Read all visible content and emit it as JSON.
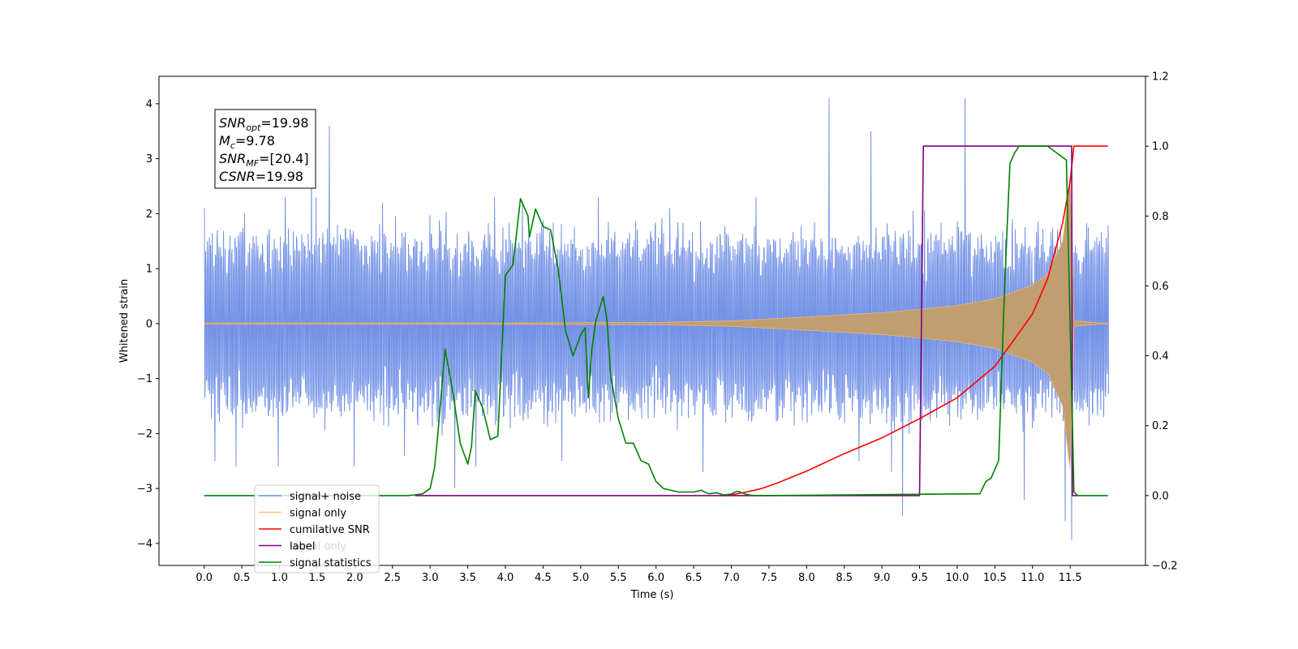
{
  "chart_data": {
    "type": "line",
    "xlabel": "Time (s)",
    "ylabel": "Whitened strain",
    "xlim": [
      -0.6,
      12.5
    ],
    "ylim": [
      -4.4,
      4.5
    ],
    "ylim_right": [
      -0.2,
      1.2
    ],
    "x_ticks": [
      "0.0",
      "0.5",
      "1.0",
      "1.5",
      "2.0",
      "2.5",
      "3.0",
      "3.5",
      "4.0",
      "4.5",
      "5.0",
      "5.5",
      "6.0",
      "6.5",
      "7.0",
      "7.5",
      "8.0",
      "8.5",
      "9.0",
      "9.5",
      "10.0",
      "10.5",
      "11.0",
      "11.5"
    ],
    "y_ticks_left": [
      "4",
      "3",
      "2",
      "1",
      "0",
      "−1",
      "−2",
      "−3",
      "−4"
    ],
    "y_ticks_right": [
      "1.2",
      "1.0",
      "0.8",
      "0.6",
      "0.4",
      "0.2",
      "0.0",
      "−0.2"
    ],
    "annotation": {
      "lines": [
        {
          "main": "SNR",
          "sub": "opt",
          "rest": "=19.98"
        },
        {
          "main": "M",
          "sub": "c",
          "rest": "=9.78"
        },
        {
          "main": "SNR",
          "sub": "MF",
          "rest": "=[20.4]"
        },
        {
          "main": "CSNR",
          "sub": "",
          "rest": "=19.98"
        }
      ]
    },
    "legend": {
      "placement": "lower-left",
      "entries": [
        {
          "label": "signal+ noise",
          "color": "#7391e6"
        },
        {
          "label": "signal only",
          "color": "#ffbf6b"
        },
        {
          "label": "cumilative SNR",
          "color": "#ff0000"
        },
        {
          "label": "label",
          "color": "#800080"
        },
        {
          "label": "signal statistics",
          "color": "#008000"
        }
      ],
      "ghost_labels": [
        "signal only"
      ]
    },
    "series": [
      {
        "name": "signal+ noise",
        "axis": "left",
        "color": "#7391e6",
        "style": "noise",
        "x_range": [
          0.0,
          12.0
        ],
        "typical_band": [
          -1.6,
          1.6
        ],
        "spikes": [
          {
            "x": 0.0,
            "y": 2.1
          },
          {
            "x": 0.14,
            "y": -2.5
          },
          {
            "x": 0.42,
            "y": -2.6
          },
          {
            "x": 0.98,
            "y": -2.6
          },
          {
            "x": 1.07,
            "y": 2.3
          },
          {
            "x": 1.43,
            "y": 2.8
          },
          {
            "x": 1.48,
            "y": 2.3
          },
          {
            "x": 1.66,
            "y": 3.6
          },
          {
            "x": 1.99,
            "y": -2.6
          },
          {
            "x": 2.36,
            "y": 2.2
          },
          {
            "x": 2.65,
            "y": -2.4
          },
          {
            "x": 3.32,
            "y": -3.0
          },
          {
            "x": 3.6,
            "y": -2.6
          },
          {
            "x": 3.85,
            "y": 2.3
          },
          {
            "x": 4.23,
            "y": 2.2
          },
          {
            "x": 4.74,
            "y": -2.5
          },
          {
            "x": 5.23,
            "y": 2.3
          },
          {
            "x": 6.18,
            "y": 2.1
          },
          {
            "x": 6.62,
            "y": -2.7
          },
          {
            "x": 7.33,
            "y": 2.3
          },
          {
            "x": 8.3,
            "y": 4.1
          },
          {
            "x": 8.7,
            "y": -2.5
          },
          {
            "x": 8.85,
            "y": 3.5
          },
          {
            "x": 9.13,
            "y": -2.7
          },
          {
            "x": 9.27,
            "y": -3.5
          },
          {
            "x": 10.1,
            "y": 4.1
          },
          {
            "x": 10.88,
            "y": -3.2
          },
          {
            "x": 11.43,
            "y": -3.6
          },
          {
            "x": 11.52,
            "y": -3.95
          }
        ]
      },
      {
        "name": "signal only",
        "axis": "left",
        "color": "#ffbf6b",
        "fill_color": "#c19e70",
        "style": "chirp",
        "envelope": {
          "x": [
            0.0,
            6.0,
            7.0,
            8.0,
            9.0,
            9.5,
            10.0,
            10.5,
            11.0,
            11.2,
            11.4,
            11.5,
            11.55,
            12.0
          ],
          "amplitude": [
            0.0,
            0.02,
            0.05,
            0.12,
            0.2,
            0.26,
            0.33,
            0.45,
            0.7,
            0.9,
            1.5,
            2.7,
            0.05,
            0.0
          ]
        }
      },
      {
        "name": "cumilative SNR",
        "axis": "right",
        "color": "#ff0000",
        "x": [
          6.9,
          7.0,
          7.2,
          7.4,
          7.6,
          8.0,
          8.5,
          9.0,
          9.5,
          10.0,
          10.5,
          11.0,
          11.2,
          11.4,
          11.5,
          11.55,
          12.0
        ],
        "y": [
          0.0,
          0.002,
          0.01,
          0.02,
          0.035,
          0.07,
          0.12,
          0.165,
          0.22,
          0.28,
          0.37,
          0.52,
          0.62,
          0.78,
          0.9,
          1.0,
          1.0
        ]
      },
      {
        "name": "label",
        "axis": "right",
        "color": "#800080",
        "x": [
          2.8,
          9.5,
          9.55,
          11.52,
          11.53,
          11.6
        ],
        "y": [
          0.0,
          0.0,
          1.0,
          1.0,
          0.0,
          0.0
        ]
      },
      {
        "name": "signal statistics",
        "axis": "right",
        "color": "#008000",
        "x": [
          0.0,
          2.7,
          2.8,
          2.9,
          3.0,
          3.06,
          3.1,
          3.2,
          3.3,
          3.4,
          3.5,
          3.55,
          3.6,
          3.7,
          3.8,
          3.9,
          4.0,
          4.1,
          4.2,
          4.3,
          4.32,
          4.4,
          4.5,
          4.6,
          4.7,
          4.8,
          4.9,
          5.0,
          5.06,
          5.1,
          5.15,
          5.2,
          5.3,
          5.35,
          5.4,
          5.5,
          5.6,
          5.7,
          5.8,
          5.9,
          6.0,
          6.1,
          6.2,
          6.3,
          6.5,
          6.6,
          6.7,
          6.8,
          6.9,
          7.0,
          7.05,
          7.1,
          7.2,
          7.3,
          7.4,
          10.3,
          10.38,
          10.45,
          10.55,
          10.63,
          10.7,
          10.76,
          10.82,
          11.0,
          11.2,
          11.45,
          11.55,
          11.6,
          12.0
        ],
        "y": [
          0.0,
          0.0,
          0.002,
          0.005,
          0.02,
          0.08,
          0.17,
          0.42,
          0.3,
          0.15,
          0.09,
          0.14,
          0.3,
          0.25,
          0.16,
          0.17,
          0.63,
          0.66,
          0.85,
          0.8,
          0.74,
          0.82,
          0.77,
          0.76,
          0.65,
          0.47,
          0.4,
          0.46,
          0.48,
          0.28,
          0.42,
          0.5,
          0.57,
          0.5,
          0.34,
          0.22,
          0.15,
          0.15,
          0.1,
          0.09,
          0.04,
          0.02,
          0.015,
          0.01,
          0.01,
          0.015,
          0.005,
          0.008,
          0.002,
          0.004,
          0.01,
          0.012,
          0.003,
          0.0,
          0.0,
          0.005,
          0.04,
          0.05,
          0.1,
          0.6,
          0.95,
          0.98,
          1.0,
          1.0,
          1.0,
          0.96,
          0.01,
          0.0,
          0.0
        ]
      }
    ]
  }
}
